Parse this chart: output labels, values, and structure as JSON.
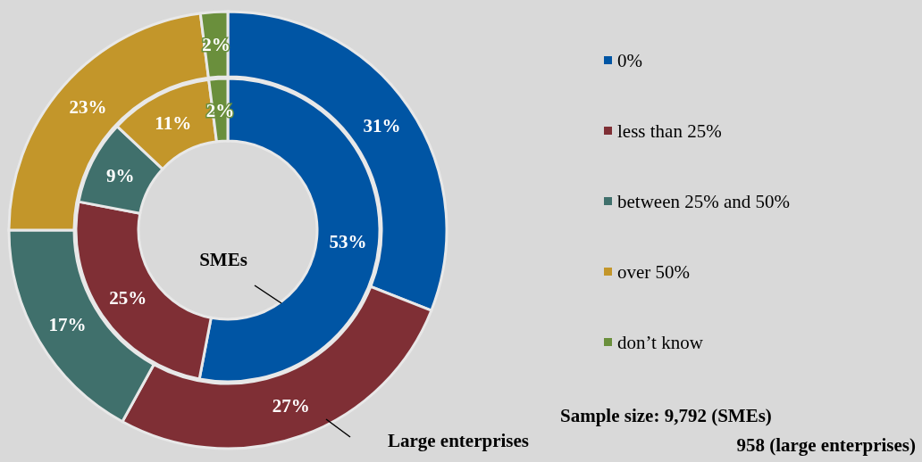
{
  "chart_data": {
    "type": "donut",
    "categories": [
      "0%",
      "less than 25%",
      "between 25% and 50%",
      "over 50%",
      "don’t know"
    ],
    "colors": [
      "#0055a4",
      "#7f2f35",
      "#40706c",
      "#c3962a",
      "#6a8f3c"
    ],
    "series": [
      {
        "name": "SMEs",
        "values": [
          53,
          25,
          9,
          11,
          2
        ],
        "value_labels": [
          "53%",
          "25%",
          "9%",
          "11%",
          "2%"
        ]
      },
      {
        "name": "Large enterprises",
        "values": [
          31,
          27,
          17,
          23,
          2
        ],
        "value_labels": [
          "31%",
          "27%",
          "17%",
          "23%",
          "2%"
        ]
      }
    ],
    "legend": "right",
    "annotations": [
      "Sample size: 9,792 (SMEs)",
      "958 (large enterprises)"
    ]
  }
}
